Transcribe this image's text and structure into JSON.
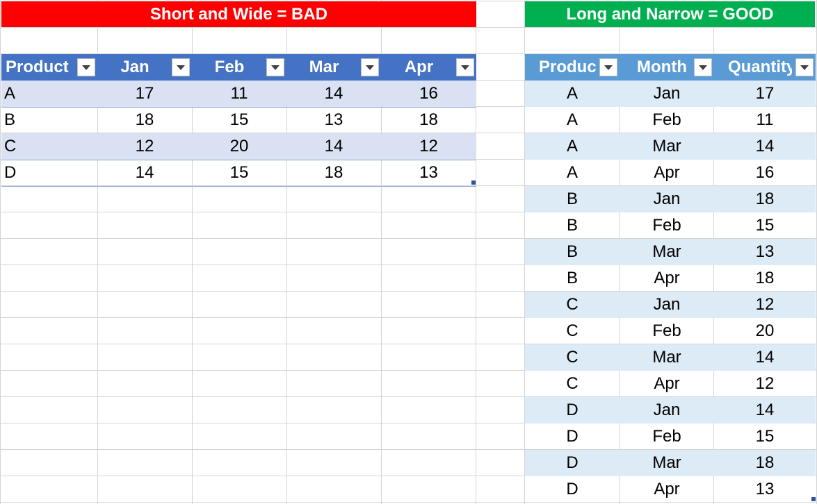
{
  "banners": {
    "bad": "Short and Wide = BAD",
    "good": "Long and Narrow = GOOD"
  },
  "wide_table": {
    "headers": [
      "Product",
      "Jan",
      "Feb",
      "Mar",
      "Apr"
    ],
    "rows": [
      [
        "A",
        "17",
        "11",
        "14",
        "16"
      ],
      [
        "B",
        "18",
        "15",
        "13",
        "18"
      ],
      [
        "C",
        "12",
        "20",
        "14",
        "12"
      ],
      [
        "D",
        "14",
        "15",
        "18",
        "13"
      ]
    ]
  },
  "long_table": {
    "headers": [
      "Product",
      "Month",
      "Quantity"
    ],
    "rows": [
      [
        "A",
        "Jan",
        "17"
      ],
      [
        "A",
        "Feb",
        "11"
      ],
      [
        "A",
        "Mar",
        "14"
      ],
      [
        "A",
        "Apr",
        "16"
      ],
      [
        "B",
        "Jan",
        "18"
      ],
      [
        "B",
        "Feb",
        "15"
      ],
      [
        "B",
        "Mar",
        "13"
      ],
      [
        "B",
        "Apr",
        "18"
      ],
      [
        "C",
        "Jan",
        "12"
      ],
      [
        "C",
        "Feb",
        "20"
      ],
      [
        "C",
        "Mar",
        "14"
      ],
      [
        "C",
        "Apr",
        "12"
      ],
      [
        "D",
        "Jan",
        "14"
      ],
      [
        "D",
        "Feb",
        "15"
      ],
      [
        "D",
        "Mar",
        "18"
      ],
      [
        "D",
        "Apr",
        "13"
      ]
    ]
  },
  "colors": {
    "bad_banner": "#ff0000",
    "good_banner": "#00b050",
    "wide_header": "#4472c4",
    "wide_band": "#d9e1f2",
    "long_header": "#5b9bd5",
    "long_band": "#ddebf7"
  },
  "icons": {
    "filter": "filter-dropdown-icon"
  }
}
